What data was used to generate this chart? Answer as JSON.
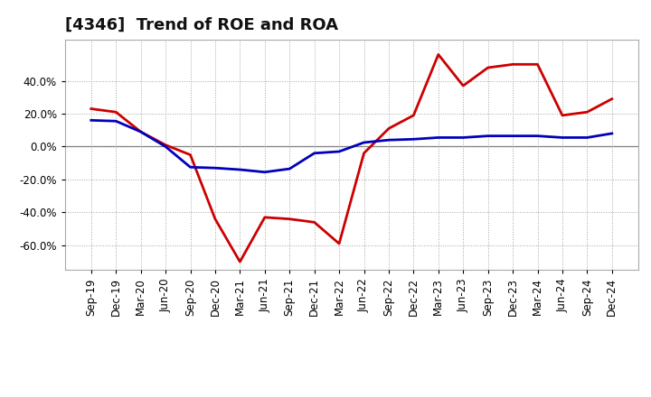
{
  "title": "[4346]  Trend of ROE and ROA",
  "x_labels": [
    "Sep-19",
    "Dec-19",
    "Mar-20",
    "Jun-20",
    "Sep-20",
    "Dec-20",
    "Mar-21",
    "Jun-21",
    "Sep-21",
    "Dec-21",
    "Mar-22",
    "Jun-22",
    "Sep-22",
    "Dec-22",
    "Mar-23",
    "Jun-23",
    "Sep-23",
    "Dec-23",
    "Mar-24",
    "Jun-24",
    "Sep-24",
    "Dec-24"
  ],
  "roe": [
    23.0,
    21.0,
    9.0,
    1.0,
    -5.0,
    -44.0,
    -70.0,
    -43.0,
    -44.0,
    -46.0,
    -59.0,
    -4.0,
    11.0,
    19.0,
    56.0,
    37.0,
    48.0,
    50.0,
    50.0,
    19.0,
    21.0,
    29.0
  ],
  "roa": [
    16.0,
    15.5,
    9.0,
    0.0,
    -12.5,
    -13.0,
    -14.0,
    -15.5,
    -13.5,
    -4.0,
    -3.0,
    2.5,
    4.0,
    4.5,
    5.5,
    5.5,
    6.5,
    6.5,
    6.5,
    5.5,
    5.5,
    8.0
  ],
  "roe_color": "#cc0000",
  "roa_color": "#0000bb",
  "background_color": "#ffffff",
  "plot_bg_color": "#ffffff",
  "grid_color": "#999999",
  "ylim": [
    -75,
    65
  ],
  "yticks": [
    -60,
    -40,
    -20,
    0,
    20,
    40
  ],
  "title_fontsize": 13,
  "legend_fontsize": 10,
  "tick_fontsize": 8.5,
  "line_width": 2.0
}
